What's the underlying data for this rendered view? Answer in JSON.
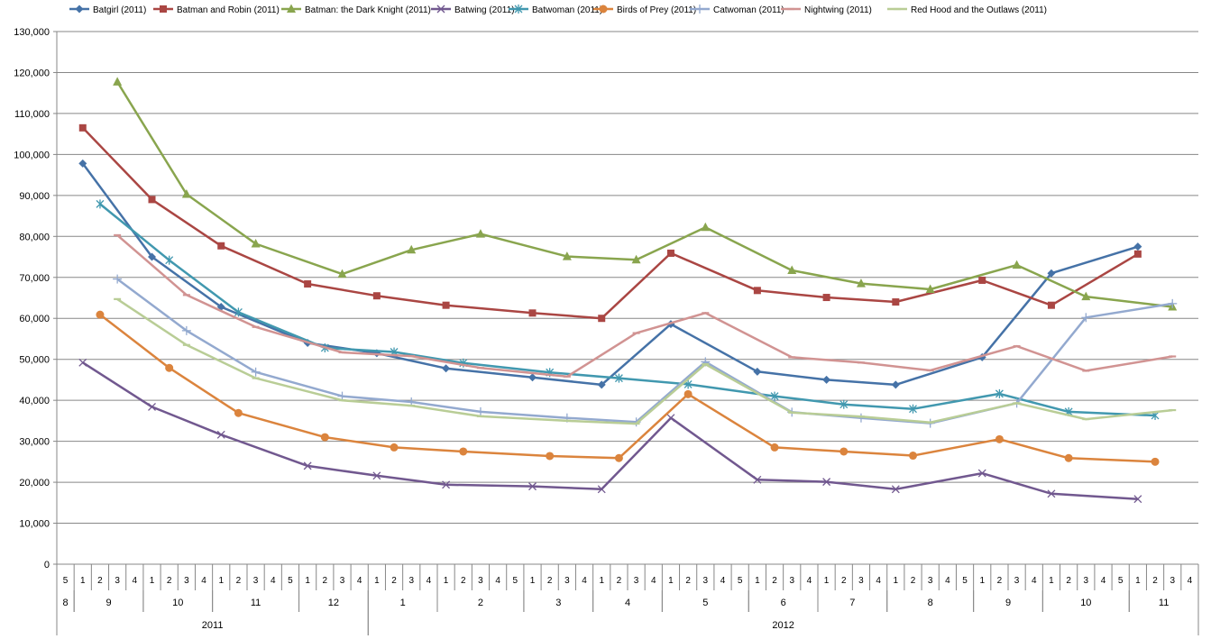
{
  "chart_data": {
    "type": "line",
    "y_axis": {
      "min": 0,
      "max": 130000,
      "step": 10000,
      "tick_labels": [
        "0",
        "10,000",
        "20,000",
        "30,000",
        "40,000",
        "50,000",
        "60,000",
        "70,000",
        "80,000",
        "90,000",
        "100,000",
        "110,000",
        "120,000",
        "130,000"
      ]
    },
    "grid": "horizontal",
    "legend_position": "top",
    "x_axis": {
      "weeks": [
        "5",
        "1",
        "2",
        "3",
        "4",
        "1",
        "2",
        "3",
        "4",
        "1",
        "2",
        "3",
        "4",
        "5",
        "1",
        "2",
        "3",
        "4",
        "1",
        "2",
        "3",
        "4",
        "1",
        "2",
        "3",
        "4",
        "5",
        "1",
        "2",
        "3",
        "4",
        "1",
        "2",
        "3",
        "4",
        "1",
        "2",
        "3",
        "4",
        "5",
        "1",
        "2",
        "3",
        "4",
        "1",
        "2",
        "3",
        "4",
        "1",
        "2",
        "3",
        "4",
        "5",
        "1",
        "2",
        "3",
        "4",
        "1",
        "2",
        "3",
        "4",
        "5",
        "1",
        "2",
        "3",
        "4"
      ],
      "months": [
        {
          "label": "8",
          "start": 0,
          "end": 0
        },
        {
          "label": "9",
          "start": 1,
          "end": 4
        },
        {
          "label": "10",
          "start": 5,
          "end": 8
        },
        {
          "label": "11",
          "start": 9,
          "end": 13
        },
        {
          "label": "12",
          "start": 14,
          "end": 17
        },
        {
          "label": "1",
          "start": 18,
          "end": 21
        },
        {
          "label": "2",
          "start": 22,
          "end": 26
        },
        {
          "label": "3",
          "start": 27,
          "end": 30
        },
        {
          "label": "4",
          "start": 31,
          "end": 34
        },
        {
          "label": "5",
          "start": 35,
          "end": 39
        },
        {
          "label": "6",
          "start": 40,
          "end": 43
        },
        {
          "label": "7",
          "start": 44,
          "end": 47
        },
        {
          "label": "8",
          "start": 48,
          "end": 52
        },
        {
          "label": "9",
          "start": 53,
          "end": 56
        },
        {
          "label": "10",
          "start": 57,
          "end": 61
        },
        {
          "label": "11",
          "start": 62,
          "end": 65
        }
      ],
      "years": [
        {
          "label": "2011",
          "start": 0,
          "end": 17
        },
        {
          "label": "2012",
          "start": 18,
          "end": 65
        }
      ]
    },
    "series": [
      {
        "name": "Batgirl (2011)",
        "color": "#4572A7",
        "marker": "diamond",
        "points": [
          [
            1,
            97800
          ],
          [
            5,
            75000
          ],
          [
            9,
            62800
          ],
          [
            14,
            54000
          ],
          [
            18,
            51500
          ],
          [
            22,
            47800
          ],
          [
            27,
            45600
          ],
          [
            31,
            43800
          ],
          [
            35,
            58600
          ],
          [
            40,
            47000
          ],
          [
            44,
            45000
          ],
          [
            48,
            43800
          ],
          [
            53,
            50500
          ],
          [
            57,
            71000
          ],
          [
            62,
            77500
          ]
        ]
      },
      {
        "name": "Batman and Robin (2011)",
        "color": "#AA4643",
        "marker": "square",
        "points": [
          [
            1,
            106500
          ],
          [
            5,
            89000
          ],
          [
            9,
            77700
          ],
          [
            14,
            68400
          ],
          [
            18,
            65500
          ],
          [
            22,
            63200
          ],
          [
            27,
            61300
          ],
          [
            31,
            60000
          ],
          [
            35,
            75900
          ],
          [
            40,
            66800
          ],
          [
            44,
            65100
          ],
          [
            48,
            64000
          ],
          [
            53,
            69300
          ],
          [
            57,
            63200
          ],
          [
            62,
            75700
          ]
        ]
      },
      {
        "name": "Batman: the Dark Knight (2011)",
        "color": "#89A54E",
        "marker": "triangle",
        "points": [
          [
            3,
            117700
          ],
          [
            7,
            90300
          ],
          [
            11,
            78200
          ],
          [
            16,
            70800
          ],
          [
            20,
            76700
          ],
          [
            24,
            80600
          ],
          [
            29,
            75100
          ],
          [
            33,
            74300
          ],
          [
            37,
            82200
          ],
          [
            42,
            71700
          ],
          [
            46,
            68500
          ],
          [
            50,
            67100
          ],
          [
            55,
            73000
          ],
          [
            59,
            65300
          ],
          [
            64,
            62800
          ]
        ]
      },
      {
        "name": "Batwing (2011)",
        "color": "#71588F",
        "marker": "x",
        "points": [
          [
            1,
            49200
          ],
          [
            5,
            38400
          ],
          [
            9,
            31600
          ],
          [
            14,
            24000
          ],
          [
            18,
            21600
          ],
          [
            22,
            19400
          ],
          [
            27,
            19000
          ],
          [
            31,
            18300
          ],
          [
            35,
            35700
          ],
          [
            40,
            20600
          ],
          [
            44,
            20100
          ],
          [
            48,
            18300
          ],
          [
            53,
            22200
          ],
          [
            57,
            17200
          ],
          [
            62,
            15900
          ]
        ]
      },
      {
        "name": "Batwoman (2011)",
        "color": "#4198AF",
        "marker": "star",
        "points": [
          [
            2,
            87900
          ],
          [
            6,
            74200
          ],
          [
            10,
            61500
          ],
          [
            15,
            52800
          ],
          [
            19,
            51800
          ],
          [
            23,
            49100
          ],
          [
            28,
            46800
          ],
          [
            32,
            45400
          ],
          [
            36,
            43900
          ],
          [
            41,
            41000
          ],
          [
            45,
            39000
          ],
          [
            49,
            37900
          ],
          [
            54,
            41600
          ],
          [
            58,
            37200
          ],
          [
            63,
            36300
          ]
        ]
      },
      {
        "name": "Birds of Prey (2011)",
        "color": "#DB843D",
        "marker": "circle",
        "points": [
          [
            2,
            60900
          ],
          [
            6,
            47900
          ],
          [
            10,
            36900
          ],
          [
            15,
            31000
          ],
          [
            19,
            28500
          ],
          [
            23,
            27500
          ],
          [
            28,
            26400
          ],
          [
            32,
            25900
          ],
          [
            36,
            41500
          ],
          [
            41,
            28500
          ],
          [
            45,
            27500
          ],
          [
            49,
            26500
          ],
          [
            54,
            30500
          ],
          [
            58,
            25900
          ],
          [
            63,
            25000
          ]
        ]
      },
      {
        "name": "Catwoman (2011)",
        "color": "#93A9CF",
        "marker": "plus",
        "points": [
          [
            3,
            69600
          ],
          [
            7,
            57000
          ],
          [
            11,
            46900
          ],
          [
            16,
            41000
          ],
          [
            20,
            39600
          ],
          [
            24,
            37200
          ],
          [
            29,
            35700
          ],
          [
            33,
            34700
          ],
          [
            37,
            49400
          ],
          [
            42,
            37100
          ],
          [
            46,
            35700
          ],
          [
            50,
            34400
          ],
          [
            55,
            39300
          ],
          [
            59,
            60200
          ],
          [
            64,
            63600
          ]
        ]
      },
      {
        "name": "Nightwing (2011)",
        "color": "#D19392",
        "marker": "dash",
        "points": [
          [
            3,
            80300
          ],
          [
            7,
            65700
          ],
          [
            11,
            57900
          ],
          [
            16,
            51700
          ],
          [
            20,
            50800
          ],
          [
            24,
            47900
          ],
          [
            29,
            45800
          ],
          [
            33,
            56400
          ],
          [
            37,
            61300
          ],
          [
            42,
            50500
          ],
          [
            46,
            49200
          ],
          [
            50,
            47300
          ],
          [
            55,
            53200
          ],
          [
            59,
            47200
          ],
          [
            64,
            50700
          ]
        ]
      },
      {
        "name": "Red Hood and the Outlaws (2011)",
        "color": "#B9CD96",
        "marker": "dash",
        "points": [
          [
            3,
            64700
          ],
          [
            7,
            53500
          ],
          [
            11,
            45400
          ],
          [
            16,
            40000
          ],
          [
            20,
            38700
          ],
          [
            24,
            36100
          ],
          [
            29,
            35000
          ],
          [
            33,
            34300
          ],
          [
            37,
            48800
          ],
          [
            42,
            37000
          ],
          [
            46,
            36000
          ],
          [
            50,
            34600
          ],
          [
            55,
            39300
          ],
          [
            59,
            35400
          ],
          [
            64,
            37600
          ]
        ]
      }
    ]
  }
}
